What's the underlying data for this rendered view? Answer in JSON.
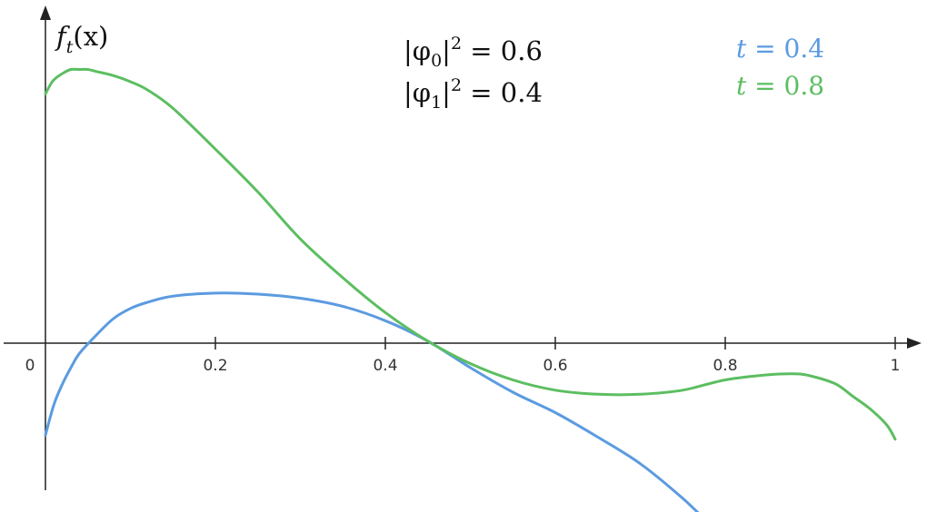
{
  "chart_data": {
    "type": "line",
    "title": "",
    "ylabel": {
      "f": "f",
      "t": "t",
      "x": "(x)"
    },
    "xlim": [
      0,
      1
    ],
    "ylim": [
      -0.88,
      1.6
    ],
    "x_ticks": [
      {
        "value": 0,
        "label": "0"
      },
      {
        "value": 0.2,
        "label": "0.2"
      },
      {
        "value": 0.4,
        "label": "0.4"
      },
      {
        "value": 0.6,
        "label": "0.6"
      },
      {
        "value": 0.8,
        "label": "0.8"
      },
      {
        "value": 1,
        "label": "1"
      }
    ],
    "annotations": [
      {
        "pre": "|φ",
        "sub": "0",
        "post": "|",
        "sup": "2",
        "rest": " = 0.6"
      },
      {
        "pre": "|φ",
        "sub": "1",
        "post": "|",
        "sup": "2",
        "rest": " = 0.4"
      }
    ],
    "legend_position": "top-right",
    "grid": false,
    "series": [
      {
        "label_var": "t",
        "label_rest": " = 0.4",
        "color": "#5b9be0",
        "x": [
          0,
          0.01,
          0.02,
          0.03,
          0.04,
          0.06,
          0.08,
          0.1,
          0.12,
          0.15,
          0.2,
          0.25,
          0.3,
          0.35,
          0.4,
          0.45,
          0.5,
          0.55,
          0.6,
          0.65,
          0.7,
          0.75,
          0.78
        ],
        "y": [
          -0.45,
          -0.3,
          -0.2,
          -0.12,
          -0.05,
          0.04,
          0.12,
          0.17,
          0.2,
          0.23,
          0.245,
          0.24,
          0.22,
          0.18,
          0.11,
          0.01,
          -0.12,
          -0.24,
          -0.34,
          -0.46,
          -0.59,
          -0.76,
          -0.88
        ]
      },
      {
        "label_var": "t",
        "label_rest": " = 0.8",
        "color": "#5cbe61",
        "x": [
          0,
          0.005,
          0.01,
          0.02,
          0.03,
          0.04,
          0.05,
          0.06,
          0.08,
          0.1,
          0.12,
          0.15,
          0.2,
          0.25,
          0.3,
          0.35,
          0.4,
          0.45,
          0.5,
          0.55,
          0.6,
          0.65,
          0.7,
          0.75,
          0.8,
          0.85,
          0.88,
          0.9,
          0.93,
          0.95,
          0.97,
          0.99,
          1
        ],
        "y": [
          1.22,
          1.26,
          1.29,
          1.32,
          1.34,
          1.34,
          1.34,
          1.33,
          1.31,
          1.28,
          1.24,
          1.15,
          0.95,
          0.74,
          0.51,
          0.32,
          0.15,
          0.01,
          -0.1,
          -0.18,
          -0.23,
          -0.25,
          -0.25,
          -0.23,
          -0.18,
          -0.155,
          -0.15,
          -0.16,
          -0.2,
          -0.26,
          -0.32,
          -0.4,
          -0.47
        ]
      }
    ]
  }
}
